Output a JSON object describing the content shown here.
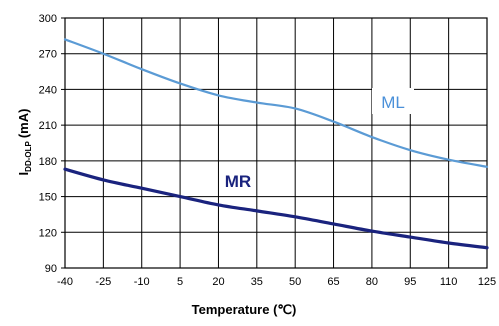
{
  "chart_data": {
    "type": "line",
    "title": "",
    "xlabel": "Temperature (℃)",
    "ylabel_main": "I",
    "ylabel_sub": "DD-OLP",
    "ylabel_unit": "(mA)",
    "xlim": [
      -40,
      125
    ],
    "ylim": [
      90,
      300
    ],
    "x_ticks": [
      -40,
      -25,
      -10,
      5,
      20,
      35,
      50,
      65,
      80,
      95,
      110,
      125
    ],
    "x_tick_labels": [
      "-40",
      "-25",
      "-10",
      "5",
      "20",
      "35",
      "50",
      "65",
      "80",
      "95",
      "110",
      "125"
    ],
    "y_ticks": [
      90,
      120,
      150,
      180,
      210,
      240,
      270,
      300
    ],
    "y_tick_labels": [
      "90",
      "120",
      "150",
      "180",
      "210",
      "240",
      "270",
      "300"
    ],
    "grid": true,
    "series": [
      {
        "name": "ML",
        "color": "#5b9bd5",
        "label_color": "#4a90d9",
        "x": [
          -40,
          -25,
          -10,
          5,
          20,
          35,
          50,
          65,
          80,
          95,
          110,
          125
        ],
        "y": [
          282,
          270,
          257,
          245,
          235,
          229,
          224,
          213,
          200,
          189,
          181,
          175
        ]
      },
      {
        "name": "MR",
        "color": "#1a237e",
        "label_color": "#1a237e",
        "x": [
          -40,
          -25,
          -10,
          5,
          20,
          35,
          50,
          65,
          80,
          95,
          110,
          125
        ],
        "y": [
          173,
          164,
          157,
          150,
          143,
          138,
          133,
          127,
          121,
          116,
          111,
          107
        ]
      }
    ]
  }
}
